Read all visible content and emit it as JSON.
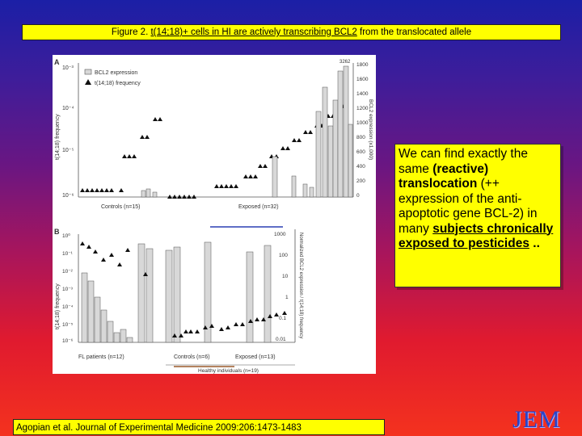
{
  "slide": {
    "title_prefix": "Figure 2. ",
    "title_link": "t(14;18)+ cells in HI are actively transcribing BCL2",
    "title_suffix": " from the translocated allele",
    "callout": {
      "part1": "We can find exactly the same ",
      "part2": "(reactive) translocation",
      "part3": " (++ expression of the anti-apoptotic gene BCL-2) in many ",
      "part4": "subjects chronically exposed to pesticides",
      "part5": " .."
    },
    "citation": "Agopian et al. Journal of Experimental Medicine 2009:206:1473-1483",
    "logo_text": "JEM"
  },
  "panel_a": {
    "letter": "A",
    "y_left_label": "t(14;18) frequency",
    "y_right_label": "BCL2 expression (x1,000)",
    "left_ticks": [
      "10⁻³",
      "10⁻⁴",
      "10⁻⁵",
      "10⁻⁶"
    ],
    "right_ticks": [
      "1800",
      "1600",
      "1400",
      "1200",
      "1000",
      "800",
      "600",
      "400",
      "200",
      "0"
    ],
    "legend_bar": "BCL2 expression",
    "legend_tri": "t(14;18) frequency",
    "group1": "Controls (n=15)",
    "group2": "Exposed (n=32)",
    "top_mark": "3262"
  },
  "panel_b": {
    "letter": "B",
    "y_left_label": "t(14;18) frequency",
    "y_right_label": "Normalized BCL2 expression / t(14;18) frequency",
    "left_ticks": [
      "10⁰",
      "10⁻¹",
      "10⁻²",
      "10⁻³",
      "10⁻⁴",
      "10⁻⁵",
      "10⁻⁶"
    ],
    "right_ticks": [
      "1000",
      "100",
      "10",
      "1",
      "0.1",
      "0.01"
    ],
    "group1": "FL patients (n=12)",
    "group2": "Controls (n=6)",
    "group3": "Exposed (n=13)",
    "group_healthy": "Healthy individuals (n=19)"
  },
  "colors": {
    "title_bg": "#ffff00",
    "callout_bg": "#ffff00",
    "logo": "#2a43c7",
    "bars": "#d8d8d8"
  }
}
